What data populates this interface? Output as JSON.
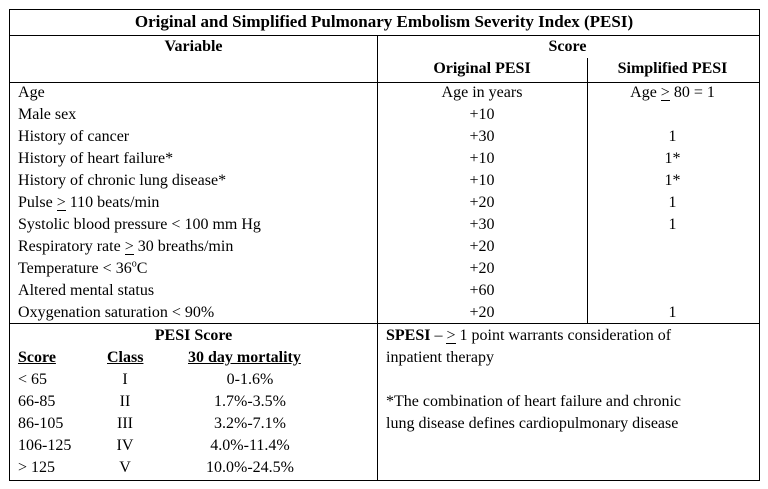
{
  "title": "Original and Simplified Pulmonary Embolism Severity Index (PESI)",
  "header": {
    "variable": "Variable",
    "score": "Score",
    "original": "Original PESI",
    "simplified": "Simplified PESI"
  },
  "rows": [
    {
      "variable": "Age",
      "original": "Age in years",
      "simplified": "Age ≥ 80 = 1"
    },
    {
      "variable": "Male sex",
      "original": "+10",
      "simplified": ""
    },
    {
      "variable": "History of cancer",
      "original": "+30",
      "simplified": "1"
    },
    {
      "variable": "History of heart failure*",
      "original": "+10",
      "simplified": "1*"
    },
    {
      "variable": "History of chronic lung disease*",
      "original": "+10",
      "simplified": "1*"
    },
    {
      "variable": "Pulse ≥ 110 beats/min",
      "original": "+20",
      "simplified": "1"
    },
    {
      "variable": "Systolic blood pressure < 100 mm Hg",
      "original": "+30",
      "simplified": "1"
    },
    {
      "variable": "Respiratory rate ≥ 30 breaths/min",
      "original": "+20",
      "simplified": ""
    },
    {
      "variable": "Temperature < 36°C",
      "original": "+20",
      "simplified": ""
    },
    {
      "variable": "Altered mental status",
      "original": "+60",
      "simplified": ""
    },
    {
      "variable": "Oxygenation saturation < 90%",
      "original": "+20",
      "simplified": "1"
    }
  ],
  "pesi_score": {
    "title": "PESI Score",
    "headers": {
      "score": "Score",
      "class": "Class",
      "mortality": "30 day mortality"
    },
    "rows": [
      {
        "score": "< 65",
        "class": "I",
        "mortality": "0-1.6%"
      },
      {
        "score": "66-85",
        "class": "II",
        "mortality": "1.7%-3.5%"
      },
      {
        "score": "86-105",
        "class": "III",
        "mortality": "3.2%-7.1%"
      },
      {
        "score": "106-125",
        "class": "IV",
        "mortality": "4.0%-11.4%"
      },
      {
        "score": "> 125",
        "class": "V",
        "mortality": "10.0%-24.5%"
      }
    ]
  },
  "notes": {
    "spesi_bold": "SPESI",
    "spesi_line1": " – ≥ 1 point warrants consideration of",
    "spesi_line2": "inpatient therapy",
    "footnote_line1": "*The combination of heart failure and chronic",
    "footnote_line2": "lung disease defines cardiopulmonary disease"
  }
}
